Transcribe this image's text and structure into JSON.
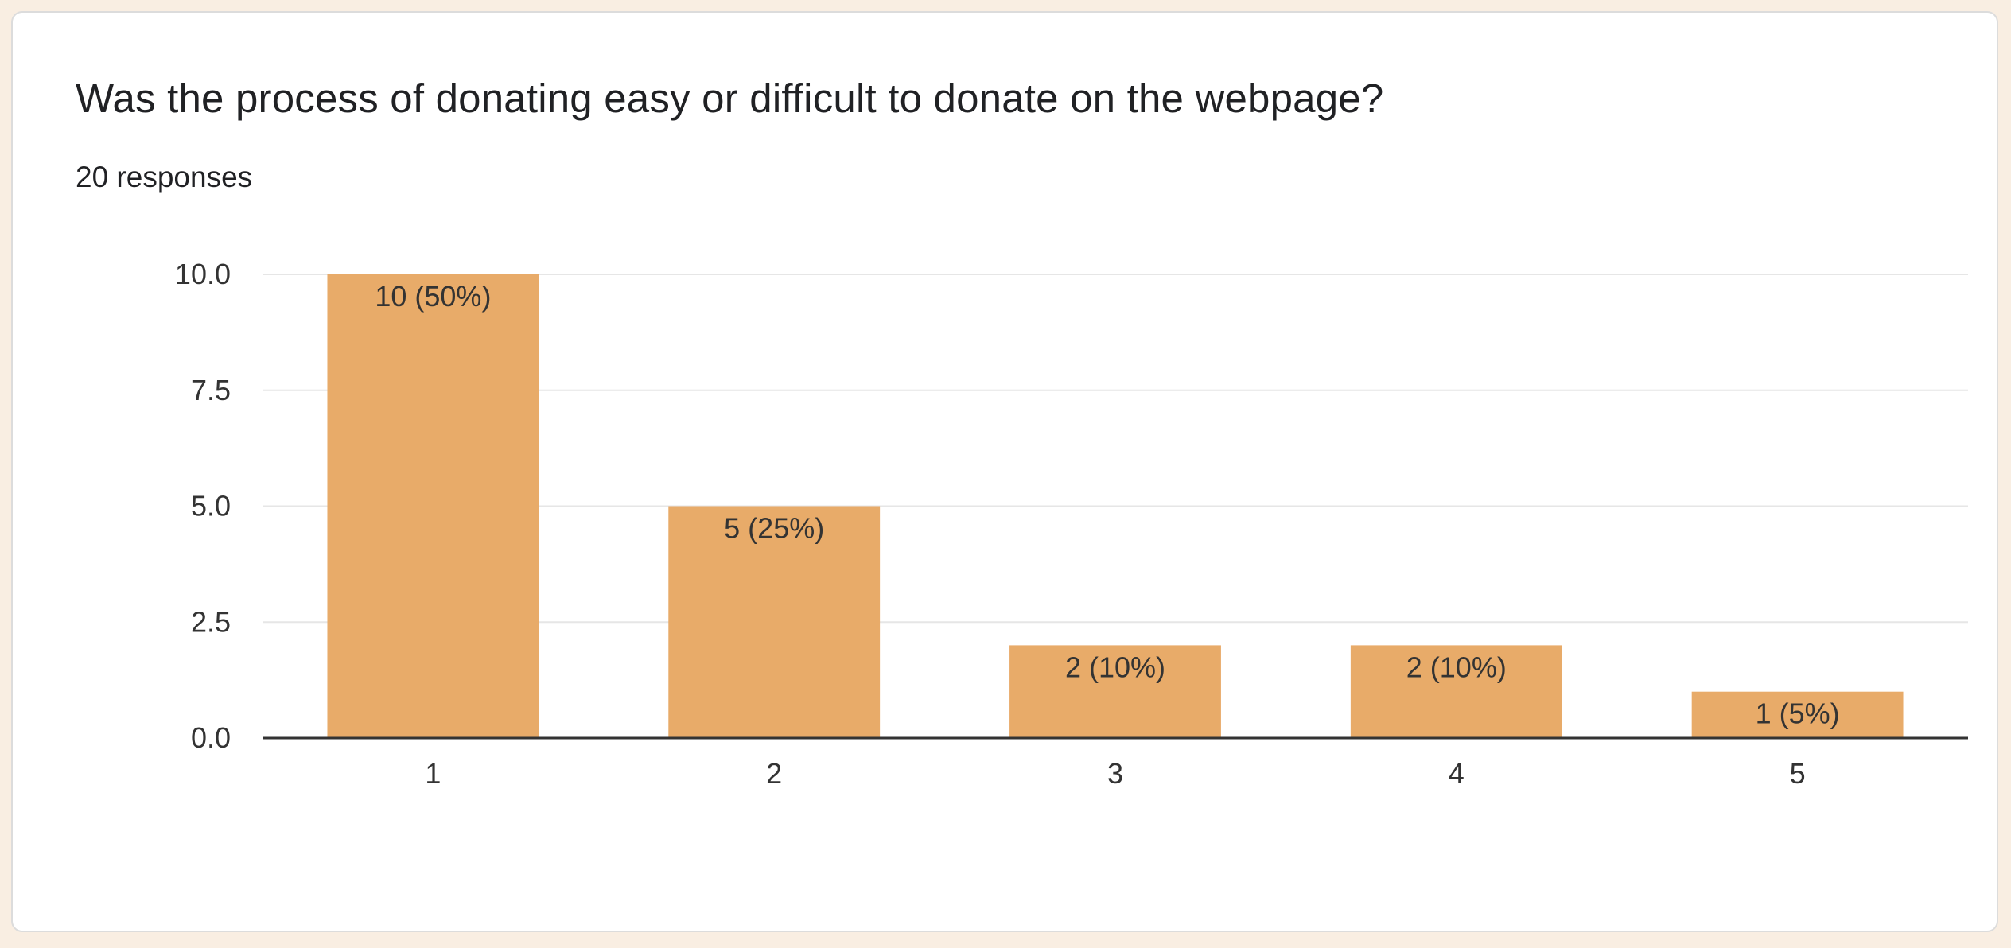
{
  "question": "Was the process of donating easy or difficult to donate on the webpage?",
  "responses_text": "20 responses",
  "chart_data": {
    "type": "bar",
    "categories": [
      "1",
      "2",
      "3",
      "4",
      "5"
    ],
    "values": [
      10,
      5,
      2,
      2,
      1
    ],
    "data_labels": [
      "10 (50%)",
      "5 (25%)",
      "2 (10%)",
      "2 (10%)",
      "1 (5%)"
    ],
    "yticks": [
      "0.0",
      "2.5",
      "5.0",
      "7.5",
      "10.0"
    ],
    "ylim": [
      0,
      10
    ],
    "grid": true,
    "bar_color": "#e8ab69",
    "grid_color": "#e6e6e6",
    "axis_color": "#333333"
  }
}
